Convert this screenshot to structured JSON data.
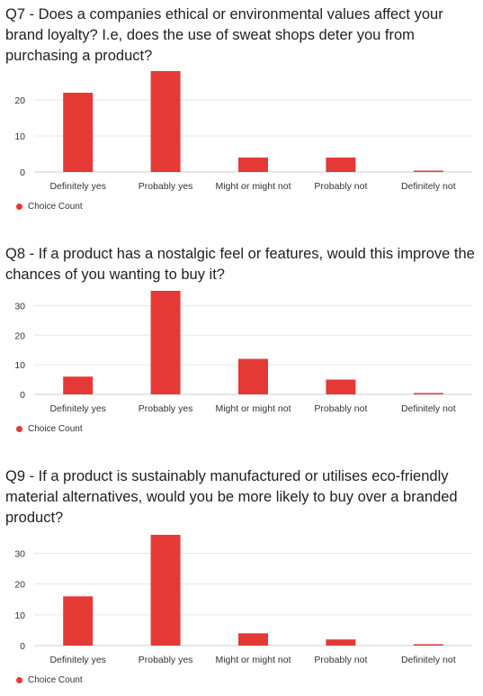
{
  "colors": {
    "bar": "#e53935",
    "grid": "#e6e6e6",
    "baseline": "#cfcfcf",
    "text": "#333333"
  },
  "questions": [
    {
      "text": "Q7 - Does a companies ethical or environmental values affect your brand loyalty? I.e, does the use of sweat shops deter you from purchasing a product?"
    },
    {
      "text": "Q8 - If a product has a nostalgic feel or features, would this improve the chances of you wanting to buy it?"
    },
    {
      "text": "Q9 - If a product is sustainably manufactured or utilises eco-friendly material alternatives, would you be more likely to buy over a branded product?"
    }
  ],
  "legend_label": "Choice Count",
  "chart_data": [
    {
      "type": "bar",
      "title": "Q7 - Does a companies ethical or environmental values affect your brand loyalty? I.e, does the use of sweat shops deter you from purchasing a product?",
      "categories": [
        "Definitely yes",
        "Probably yes",
        "Might or might not",
        "Probably not",
        "Definitely not"
      ],
      "series": [
        {
          "name": "Choice Count",
          "values": [
            22,
            28,
            4,
            4,
            0
          ]
        }
      ],
      "yticks": [
        0,
        10,
        20
      ],
      "ylim": [
        0,
        28
      ],
      "grid": true,
      "legend": "bottom-left"
    },
    {
      "type": "bar",
      "title": "Q8 - If a product has a nostalgic feel or features, would this improve the chances of you wanting to buy it?",
      "categories": [
        "Definitely yes",
        "Probably yes",
        "Might or might not",
        "Probably not",
        "Definitely not"
      ],
      "series": [
        {
          "name": "Choice Count",
          "values": [
            6,
            35,
            12,
            5,
            0
          ]
        }
      ],
      "yticks": [
        0,
        10,
        20,
        30
      ],
      "ylim": [
        0,
        35
      ],
      "grid": true,
      "legend": "bottom-left"
    },
    {
      "type": "bar",
      "title": "Q9 - If a product is sustainably manufactured or utilises eco-friendly material alternatives, would you be more likely to buy over a branded product?",
      "categories": [
        "Definitely yes",
        "Probably yes",
        "Might or might not",
        "Probably not",
        "Definitely not"
      ],
      "series": [
        {
          "name": "Choice Count",
          "values": [
            16,
            36,
            4,
            2,
            0
          ]
        }
      ],
      "yticks": [
        0,
        10,
        20,
        30
      ],
      "ylim": [
        0,
        36
      ],
      "grid": true,
      "legend": "bottom-left"
    }
  ]
}
